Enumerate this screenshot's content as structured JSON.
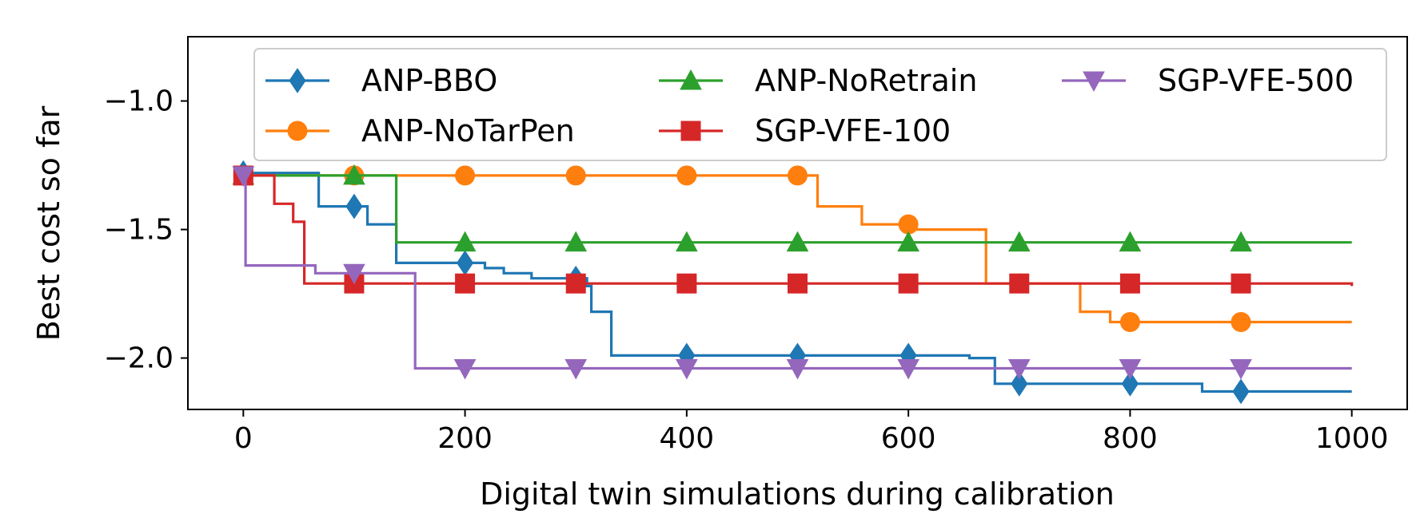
{
  "chart_data": {
    "type": "line",
    "step": true,
    "title": "",
    "xlabel": "Digital twin simulations during calibration",
    "ylabel": "Best cost so far",
    "xlim": [
      -50,
      1050
    ],
    "ylim": [
      -2.2,
      -0.75
    ],
    "x_ticks": [
      0,
      200,
      400,
      600,
      800,
      1000
    ],
    "x_tick_labels": [
      "0",
      "200",
      "400",
      "600",
      "800",
      "1000"
    ],
    "y_ticks": [
      -1.0,
      -1.5,
      -2.0
    ],
    "y_tick_labels": [
      "−1.0",
      "−1.5",
      "−2.0"
    ],
    "grid": false,
    "legend": {
      "placement": "top-right",
      "columns": 3
    },
    "marker_every": [
      0,
      100,
      200,
      300,
      400,
      500,
      600,
      700,
      800,
      900
    ],
    "series": [
      {
        "name": "ANP-BBO",
        "color": "#1f77b4",
        "marker": "diamond",
        "steps": [
          [
            0,
            -1.28
          ],
          [
            68,
            -1.41
          ],
          [
            112,
            -1.48
          ],
          [
            138,
            -1.63
          ],
          [
            198,
            -1.63
          ],
          [
            218,
            -1.65
          ],
          [
            235,
            -1.67
          ],
          [
            260,
            -1.69
          ],
          [
            290,
            -1.69
          ],
          [
            310,
            -1.72
          ],
          [
            314,
            -1.82
          ],
          [
            332,
            -1.99
          ],
          [
            655,
            -2.0
          ],
          [
            678,
            -2.1
          ],
          [
            865,
            -2.13
          ],
          [
            1000,
            -2.13
          ]
        ]
      },
      {
        "name": "ANP-NoTarPen",
        "color": "#ff7f0e",
        "marker": "circle",
        "steps": [
          [
            0,
            -1.29
          ],
          [
            518,
            -1.41
          ],
          [
            558,
            -1.48
          ],
          [
            605,
            -1.5
          ],
          [
            670,
            -1.71
          ],
          [
            755,
            -1.82
          ],
          [
            782,
            -1.86
          ],
          [
            1000,
            -1.86
          ]
        ]
      },
      {
        "name": "ANP-NoRetrain",
        "color": "#2ca02c",
        "marker": "triangle-up",
        "steps": [
          [
            0,
            -1.29
          ],
          [
            138,
            -1.55
          ],
          [
            1000,
            -1.55
          ]
        ]
      },
      {
        "name": "SGP-VFE-100",
        "color": "#d62728",
        "marker": "square",
        "steps": [
          [
            0,
            -1.29
          ],
          [
            28,
            -1.4
          ],
          [
            45,
            -1.47
          ],
          [
            55,
            -1.71
          ],
          [
            1000,
            -1.72
          ]
        ]
      },
      {
        "name": "SGP-VFE-500",
        "color": "#9467bd",
        "marker": "triangle-down",
        "steps": [
          [
            0,
            -1.29
          ],
          [
            2,
            -1.64
          ],
          [
            65,
            -1.67
          ],
          [
            155,
            -2.04
          ],
          [
            1000,
            -2.04
          ]
        ]
      }
    ]
  }
}
